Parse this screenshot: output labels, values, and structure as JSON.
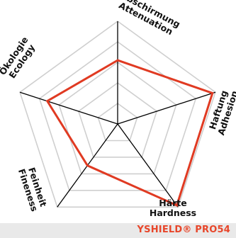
{
  "chart_data": {
    "type": "radar",
    "axes": [
      {
        "id": "attenuation",
        "lines": [
          "Abschirmung",
          "Attenuation"
        ],
        "value": 0.62
      },
      {
        "id": "adhesion",
        "lines": [
          "Haftung",
          "Adhesion"
        ],
        "value": 0.97
      },
      {
        "id": "hardness",
        "lines": [
          "Härte",
          "Hardness"
        ],
        "value": 0.98
      },
      {
        "id": "fineness",
        "lines": [
          "Feinheit",
          "Fineness"
        ],
        "value": 0.5
      },
      {
        "id": "ecology",
        "lines": [
          "Ökologie",
          "Ecology"
        ],
        "value": 0.72
      }
    ],
    "range": [
      0,
      1
    ],
    "grid_levels": 5,
    "series_color": "#e03a22",
    "grid_color": "#cfcfcf"
  },
  "footer": {
    "product_name": "YSHIELD® PRO54",
    "background": "#e9e9e9",
    "text_color": "#e8462a"
  }
}
